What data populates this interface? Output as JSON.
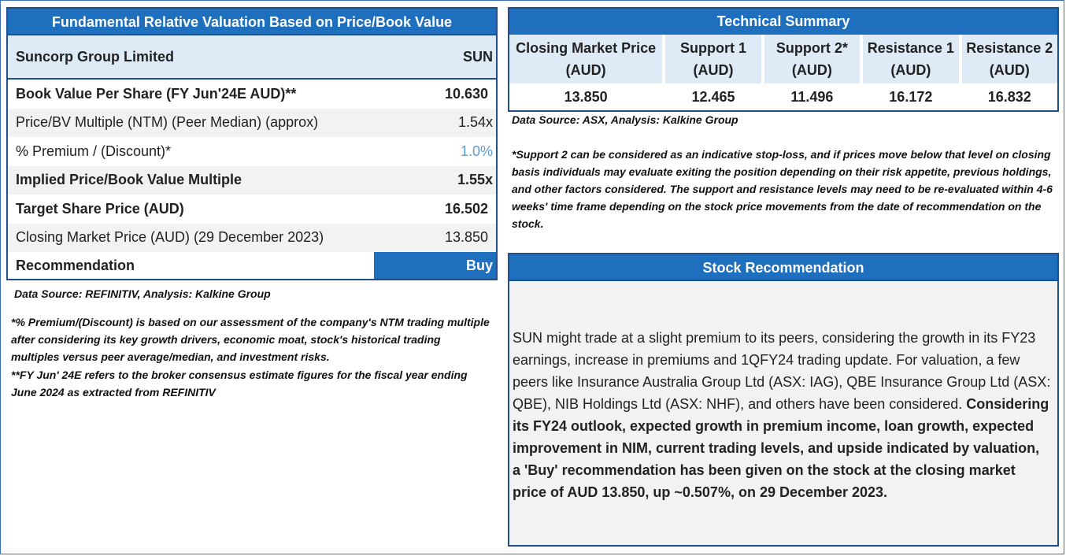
{
  "valuation": {
    "title": "Fundamental Relative Valuation Based on Price/Book Value",
    "company": "Suncorp Group Limited",
    "ticker": "SUN",
    "rows": [
      {
        "label": "Book Value Per Share (FY Jun'24E AUD)**",
        "value": "10.630"
      },
      {
        "label": "Price/BV Multiple (NTM) (Peer Median) (approx)",
        "value": "1.54x"
      },
      {
        "label": "% Premium / (Discount)*",
        "value": "1.0%"
      },
      {
        "label": "Implied Price/Book Value Multiple",
        "value": "1.55x"
      },
      {
        "label": "Target Share Price (AUD)",
        "value": "16.502"
      },
      {
        "label": "Closing Market Price (AUD) (29 December 2023)",
        "value": "13.850"
      }
    ],
    "recommendation_label": "Recommendation",
    "recommendation_value": "Buy",
    "source": "Data Source: REFINITIV, Analysis: Kalkine Group",
    "footnote1": "*% Premium/(Discount) is based on our assessment of the company's NTM trading multiple after considering its key growth drivers, economic moat, stock's historical trading multiples versus peer average/median, and investment risks.",
    "footnote2": "**FY Jun' 24E refers to the broker consensus estimate figures for the fiscal year ending June 2024 as extracted from REFINITIV"
  },
  "technical": {
    "title": "Technical Summary",
    "columns": [
      {
        "h1": "Closing Market Price",
        "h2": "(AUD)",
        "value": "13.850"
      },
      {
        "h1": "Support 1",
        "h2": "(AUD)",
        "value": "12.465"
      },
      {
        "h1": "Support 2*",
        "h2": "(AUD)",
        "value": "11.496"
      },
      {
        "h1": "Resistance 1",
        "h2": "(AUD)",
        "value": "16.172"
      },
      {
        "h1": "Resistance 2",
        "h2": "(AUD)",
        "value": "16.832"
      }
    ],
    "source": "Data Source: ASX, Analysis: Kalkine Group",
    "note": "*Support 2 can be considered as an indicative stop-loss, and if prices move below that level on closing basis individuals may evaluate exiting the position depending on their risk appetite, previous holdings, and other factors considered. The support and resistance levels may need to be re-evaluated within 4-6 weeks' time frame depending on the stock price movements from the date of recommendation on the stock."
  },
  "stock_recommendation": {
    "title": "Stock Recommendation",
    "text_normal": "SUN might trade at a slight premium to its peers, considering the growth in its FY23 earnings, increase in premiums and 1QFY24 trading update. For valuation, a few peers like Insurance Australia Group Ltd (ASX: IAG), QBE Insurance Group Ltd (ASX: QBE), NIB Holdings Ltd (ASX: NHF), and others have been considered.",
    "text_bold": "Considering its FY24 outlook, expected growth in premium income, loan growth, expected improvement in NIM, current trading levels, and upside indicated by valuation, a 'Buy' recommendation has been given on the stock at the closing market price of AUD 13.850, up ~0.507%, on 29 December 2023."
  }
}
